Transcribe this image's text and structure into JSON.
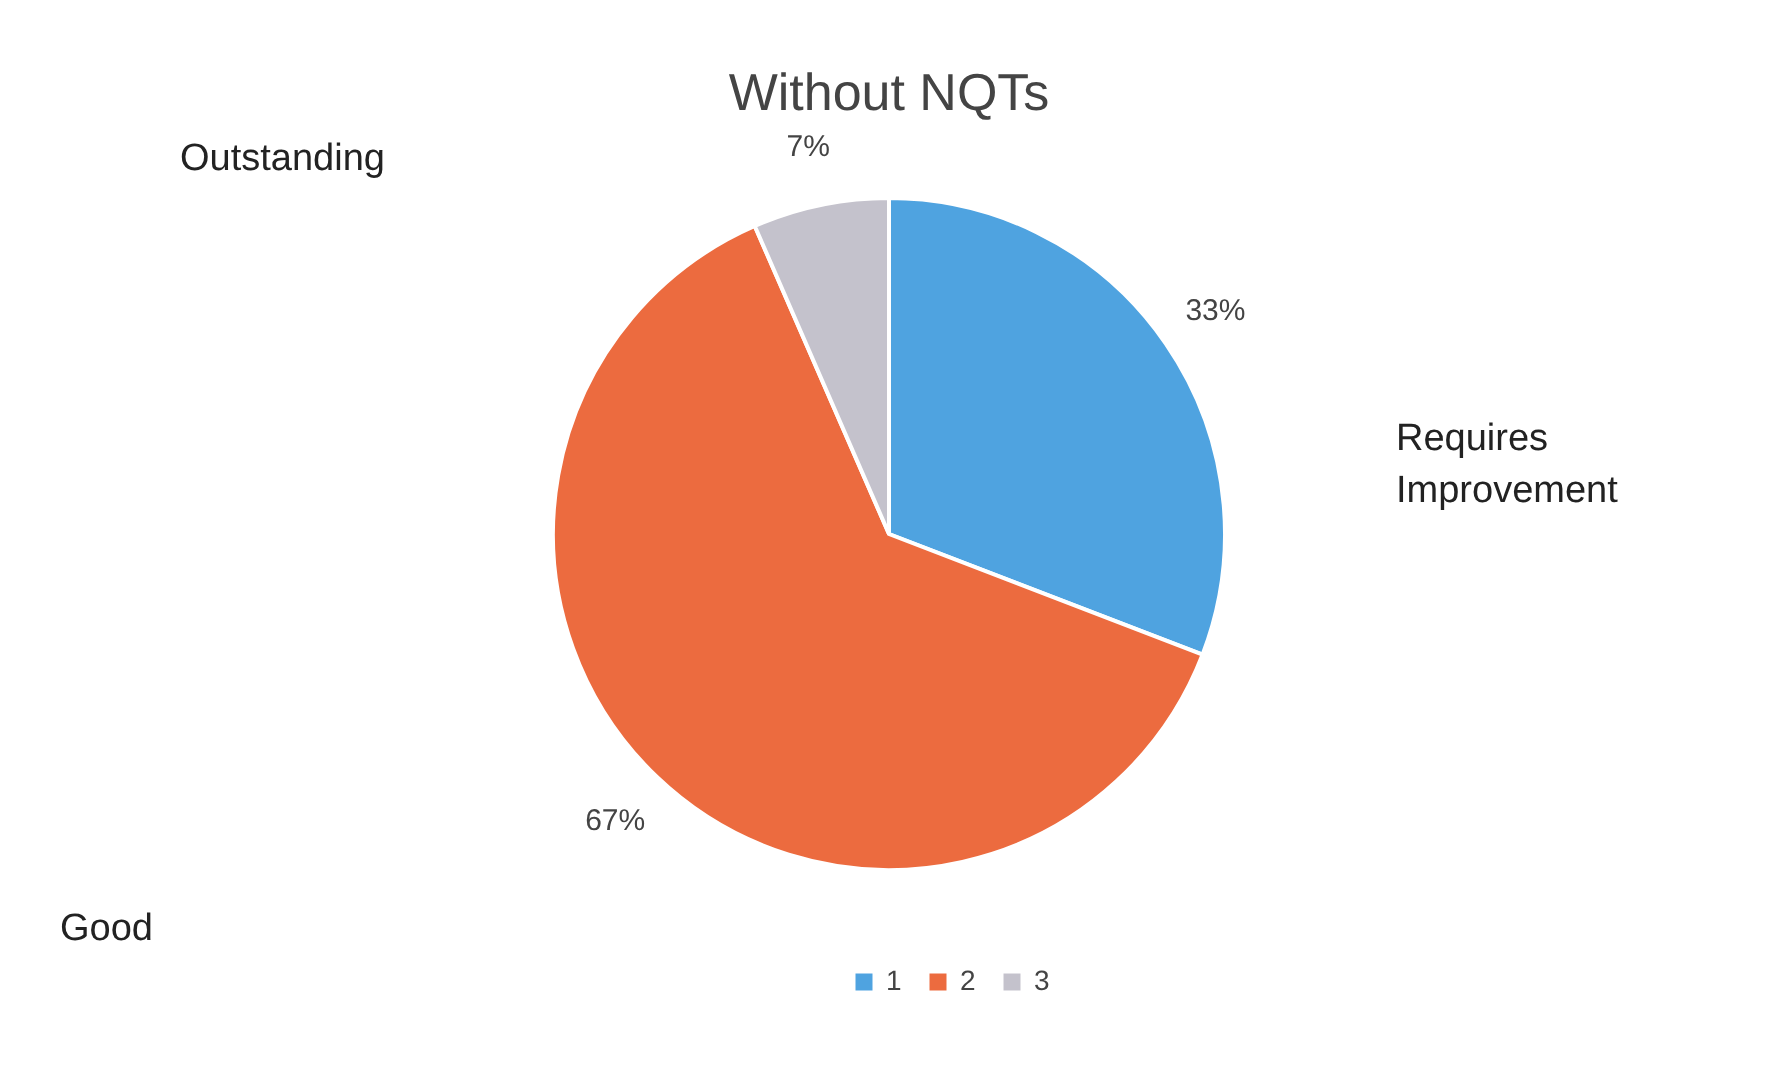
{
  "chart_data": {
    "type": "pie",
    "title": "Without NQTs",
    "categories": [
      "1",
      "2",
      "3"
    ],
    "values": [
      33,
      67,
      7
    ],
    "colors": [
      "#4fa3e0",
      "#ec6b3f",
      "#c4c2cc"
    ],
    "value_labels": [
      "33%",
      "67%",
      "7%"
    ],
    "legend": "bottom",
    "annotations": [
      "Outstanding",
      "Requires Improvement",
      "Good"
    ]
  }
}
